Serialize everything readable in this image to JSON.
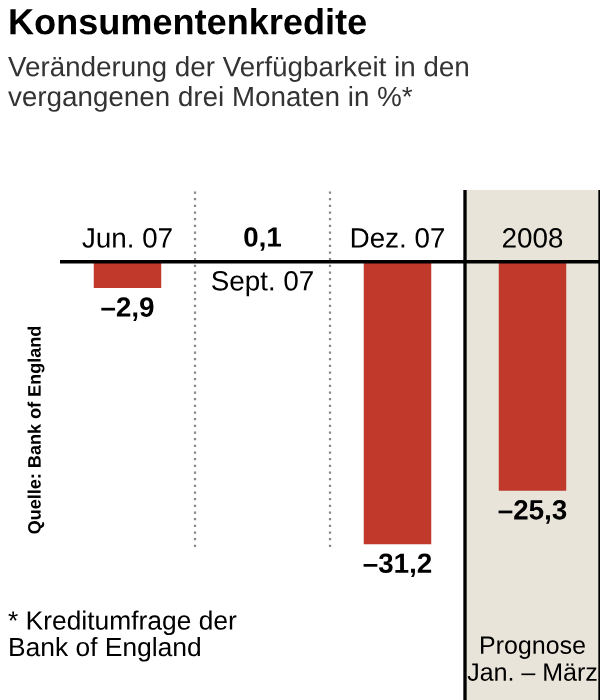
{
  "chart_data": {
    "type": "bar",
    "title": "Konsumentenkredite",
    "subtitle": "Veränderung der Verfügbarkeit in den\nvergangenen drei Monaten in %*",
    "categories": [
      "Jun. 07",
      "Sept. 07",
      "Dez. 07",
      "2008"
    ],
    "values": [
      -2.9,
      0.1,
      -31.2,
      -25.3
    ],
    "value_labels": [
      "–2,9",
      "0,1",
      "–31,2",
      "–25,3"
    ],
    "color": "#c0392b",
    "bands": [
      {
        "axis": "x",
        "from": "2008",
        "to": "2008",
        "label": "Prognose\nJan. – März",
        "color": "#e8e4da"
      }
    ],
    "annotations": [
      "Quelle: Bank of England",
      "* Kreditumfrage der\nBank of England"
    ]
  }
}
